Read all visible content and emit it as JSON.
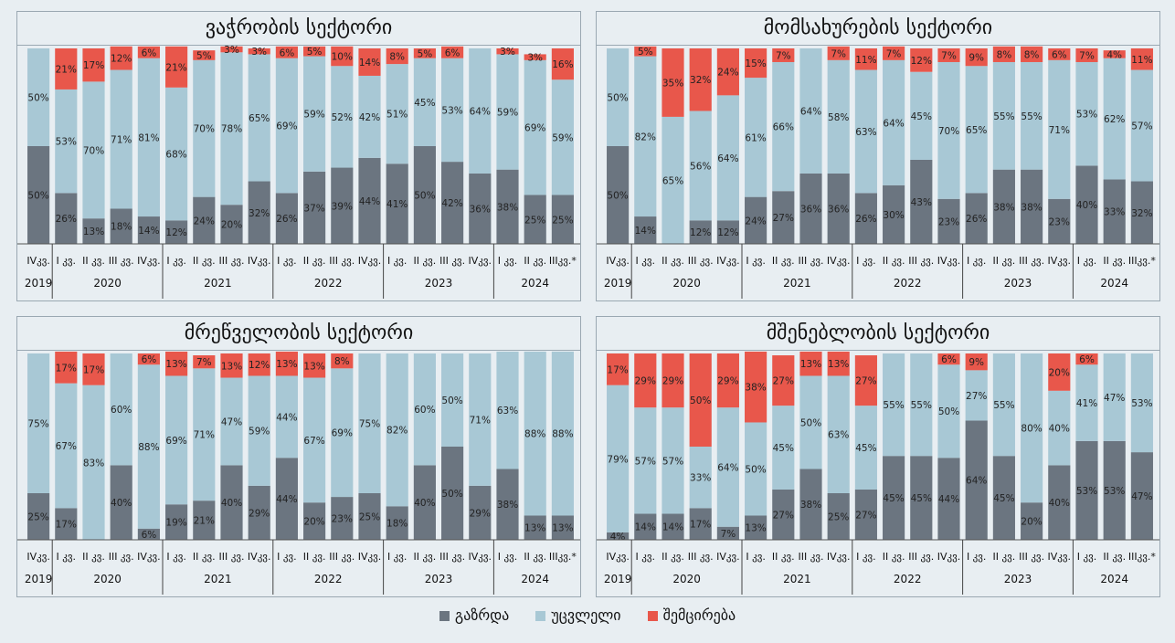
{
  "colors": {
    "increase": "#6b7580",
    "unchanged": "#a8c8d5",
    "decrease": "#e8574b"
  },
  "legend": {
    "increase": "გაზრდა",
    "unchanged": "უცვლელი",
    "decrease": "შემცირება"
  },
  "chart_data": [
    {
      "type": "bar",
      "title": "ვაჭრობის სექტორი",
      "categories": [
        "IVკვ.",
        "I კვ.",
        "II კვ.",
        "III კვ.",
        "IVკვ.",
        "I კვ.",
        "II კვ.",
        "III კვ.",
        "IVკვ.",
        "I კვ.",
        "II კვ.",
        "III კვ.",
        "IVკვ.",
        "I კვ.",
        "II კვ.",
        "III კვ.",
        "IVკვ.",
        "I კვ.",
        "II კვ.",
        "IIIკვ.*"
      ],
      "years": [
        {
          "label": "2019",
          "count": 1
        },
        {
          "label": "2020",
          "count": 4
        },
        {
          "label": "2021",
          "count": 4
        },
        {
          "label": "2022",
          "count": 4
        },
        {
          "label": "2023",
          "count": 4
        },
        {
          "label": "2024",
          "count": 3
        }
      ],
      "series": [
        {
          "name": "გაზრდა",
          "values": [
            50,
            26,
            13,
            18,
            14,
            12,
            24,
            20,
            32,
            26,
            37,
            39,
            44,
            41,
            50,
            42,
            36,
            38,
            25,
            25
          ]
        },
        {
          "name": "უცვლელი",
          "values": [
            50,
            53,
            70,
            71,
            81,
            68,
            70,
            78,
            65,
            69,
            59,
            52,
            42,
            51,
            45,
            53,
            64,
            59,
            69,
            59
          ]
        },
        {
          "name": "შემცირება",
          "values": [
            0,
            21,
            17,
            12,
            6,
            21,
            5,
            3,
            3,
            6,
            5,
            10,
            14,
            8,
            5,
            6,
            0,
            3,
            3,
            16
          ]
        }
      ]
    },
    {
      "type": "bar",
      "title": "მომსახურების სექტორი",
      "categories": [
        "IVკვ.",
        "I კვ.",
        "II კვ.",
        "III კვ.",
        "IVკვ.",
        "I კვ.",
        "II კვ.",
        "III კვ.",
        "IVკვ.",
        "I კვ.",
        "II კვ.",
        "III კვ.",
        "IVკვ.",
        "I კვ.",
        "II კვ.",
        "III კვ.",
        "IVკვ.",
        "I კვ.",
        "II კვ.",
        "IIIკვ.*"
      ],
      "years": [
        {
          "label": "2019",
          "count": 1
        },
        {
          "label": "2020",
          "count": 4
        },
        {
          "label": "2021",
          "count": 4
        },
        {
          "label": "2022",
          "count": 4
        },
        {
          "label": "2023",
          "count": 4
        },
        {
          "label": "2024",
          "count": 3
        }
      ],
      "series": [
        {
          "name": "გაზრდა",
          "values": [
            50,
            14,
            0,
            12,
            12,
            24,
            27,
            36,
            36,
            26,
            30,
            43,
            23,
            26,
            38,
            38,
            23,
            40,
            33,
            32
          ]
        },
        {
          "name": "უცვლელი",
          "values": [
            50,
            82,
            65,
            56,
            64,
            61,
            66,
            64,
            58,
            63,
            64,
            45,
            70,
            65,
            55,
            55,
            71,
            53,
            62,
            57
          ]
        },
        {
          "name": "შემცირება",
          "values": [
            0,
            5,
            35,
            32,
            24,
            15,
            7,
            0,
            7,
            11,
            7,
            12,
            7,
            9,
            8,
            8,
            6,
            7,
            4,
            11
          ]
        }
      ]
    },
    {
      "type": "bar",
      "title": "მრეწველობის სექტორი",
      "categories": [
        "IVკვ.",
        "I კვ.",
        "II კვ.",
        "III კვ.",
        "IVკვ.",
        "I კვ.",
        "II კვ.",
        "III კვ.",
        "IVკვ.",
        "I კვ.",
        "II კვ.",
        "III კვ.",
        "IVკვ.",
        "I კვ.",
        "II კვ.",
        "III კვ.",
        "IVკვ.",
        "I კვ.",
        "II კვ.",
        "IIIკვ.*"
      ],
      "years": [
        {
          "label": "2019",
          "count": 1
        },
        {
          "label": "2020",
          "count": 4
        },
        {
          "label": "2021",
          "count": 4
        },
        {
          "label": "2022",
          "count": 4
        },
        {
          "label": "2023",
          "count": 4
        },
        {
          "label": "2024",
          "count": 3
        }
      ],
      "series": [
        {
          "name": "გაზრდა",
          "values": [
            25,
            17,
            0,
            40,
            6,
            19,
            21,
            40,
            29,
            44,
            20,
            23,
            25,
            18,
            40,
            50,
            29,
            38,
            13,
            13
          ]
        },
        {
          "name": "უცვლელი",
          "values": [
            75,
            67,
            83,
            60,
            88,
            69,
            71,
            47,
            59,
            44,
            67,
            69,
            75,
            82,
            60,
            50,
            71,
            63,
            88,
            88
          ]
        },
        {
          "name": "შემცირება",
          "values": [
            0,
            17,
            17,
            0,
            6,
            13,
            7,
            13,
            12,
            13,
            13,
            8,
            0,
            0,
            0,
            0,
            0,
            0,
            0,
            0
          ]
        }
      ]
    },
    {
      "type": "bar",
      "title": "მშენებლობის სექტორი",
      "categories": [
        "IVკვ.",
        "I კვ.",
        "II კვ.",
        "III კვ.",
        "IVკვ.",
        "I კვ.",
        "II კვ.",
        "III კვ.",
        "IVკვ.",
        "I კვ.",
        "II კვ.",
        "III კვ.",
        "IVკვ.",
        "I კვ.",
        "II კვ.",
        "III კვ.",
        "IVკვ.",
        "I კვ.",
        "II კვ.",
        "IIIკვ.*"
      ],
      "years": [
        {
          "label": "2019",
          "count": 1
        },
        {
          "label": "2020",
          "count": 4
        },
        {
          "label": "2021",
          "count": 4
        },
        {
          "label": "2022",
          "count": 4
        },
        {
          "label": "2023",
          "count": 4
        },
        {
          "label": "2024",
          "count": 3
        }
      ],
      "series": [
        {
          "name": "გაზრდა",
          "values": [
            4,
            14,
            14,
            17,
            7,
            13,
            27,
            38,
            25,
            27,
            45,
            45,
            44,
            64,
            45,
            20,
            40,
            53,
            53,
            47
          ]
        },
        {
          "name": "უცვლელი",
          "values": [
            79,
            57,
            57,
            33,
            64,
            50,
            45,
            50,
            63,
            45,
            55,
            55,
            50,
            27,
            55,
            80,
            40,
            41,
            47,
            53
          ]
        },
        {
          "name": "შემცირება",
          "values": [
            17,
            29,
            29,
            50,
            29,
            38,
            27,
            13,
            13,
            27,
            0,
            0,
            6,
            9,
            0,
            0,
            20,
            6,
            0,
            0
          ]
        }
      ]
    }
  ]
}
